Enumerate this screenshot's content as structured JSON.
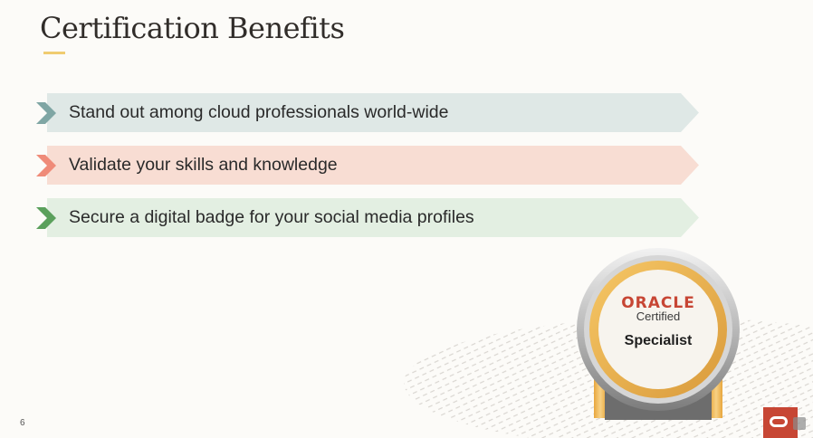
{
  "slide": {
    "title": "Certification Benefits",
    "page_number": "6"
  },
  "benefits": [
    {
      "text": "Stand out among cloud professionals world-wide",
      "bar_color": "#dfe8e6",
      "chevron_color": "#7fa6a4"
    },
    {
      "text": "Validate your skills and knowledge",
      "bar_color": "#f8ddd3",
      "chevron_color": "#ef8b79"
    },
    {
      "text": "Secure a digital badge for your social media profiles",
      "bar_color": "#e3efe2",
      "chevron_color": "#5ba05c"
    }
  ],
  "badge": {
    "brand": "ORACLE",
    "line1": "Certified",
    "line2": "Specialist"
  },
  "colors": {
    "title_accent": "#f0cc71",
    "oracle_red": "#c74634",
    "background": "#fcfbf8"
  },
  "icons": [
    "chevron-right-icon",
    "oracle-logo-icon"
  ]
}
